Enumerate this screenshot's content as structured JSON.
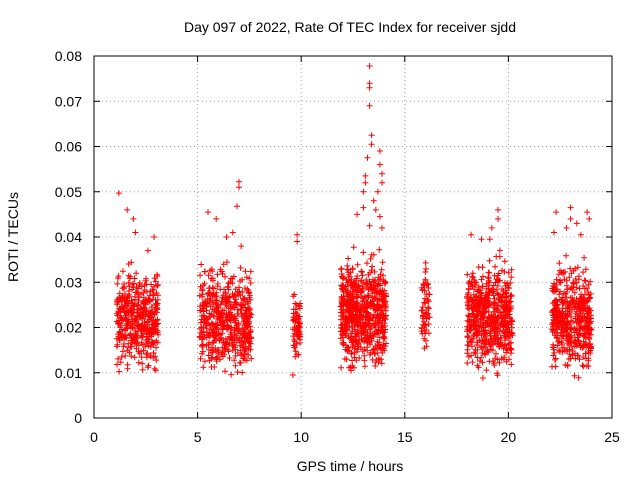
{
  "chart_data": {
    "type": "scatter",
    "title": "Day 097 of 2022, Rate Of TEC Index for receiver sjdd",
    "xlabel": "GPS time / hours",
    "ylabel": "ROTI / TECUs",
    "xlim": [
      0,
      25
    ],
    "ylim": [
      0,
      0.08
    ],
    "xticks": [
      0,
      5,
      10,
      15,
      20,
      25
    ],
    "yticks": [
      0,
      0.01,
      0.02,
      0.03,
      0.04,
      0.05,
      0.06,
      0.07,
      0.08
    ],
    "ytick_labels": [
      "0",
      "0.01",
      "0.02",
      "0.03",
      "0.04",
      "0.05",
      "0.06",
      "0.07",
      "0.08"
    ],
    "grid": true,
    "grid_style": "dotted",
    "marker": "+",
    "colors": {
      "points": "#ff0000",
      "grid": "#a0a0a0",
      "axes": "#000000"
    },
    "series": [
      {
        "clusters": [
          {
            "x_range": [
              1.1,
              3.1
            ],
            "y_range": [
              0.008,
              0.036
            ],
            "n": 430,
            "outliers": [
              [
                1.2,
                0.0497
              ],
              [
                1.6,
                0.046
              ],
              [
                1.9,
                0.044
              ],
              [
                2.0,
                0.041
              ],
              [
                2.9,
                0.04
              ],
              [
                2.6,
                0.037
              ]
            ]
          },
          {
            "x_range": [
              5.1,
              7.6
            ],
            "y_range": [
              0.007,
              0.036
            ],
            "n": 520,
            "outliers": [
              [
                5.5,
                0.0455
              ],
              [
                5.9,
                0.044
              ],
              [
                6.4,
                0.04
              ],
              [
                6.7,
                0.041
              ],
              [
                7.0,
                0.0522
              ],
              [
                7.0,
                0.051
              ],
              [
                6.9,
                0.0468
              ],
              [
                7.1,
                0.038
              ]
            ]
          },
          {
            "x_range": [
              9.6,
              9.95
            ],
            "y_range": [
              0.01,
              0.031
            ],
            "n": 70,
            "outliers": [
              [
                9.8,
                0.0405
              ],
              [
                9.8,
                0.039
              ],
              [
                9.6,
                0.0095
              ]
            ]
          },
          {
            "x_range": [
              11.9,
              14.1
            ],
            "y_range": [
              0.008,
              0.038
            ],
            "n": 650,
            "outliers": [
              [
                13.3,
                0.0778
              ],
              [
                13.3,
                0.074
              ],
              [
                13.3,
                0.073
              ],
              [
                13.3,
                0.069
              ],
              [
                13.4,
                0.0625
              ],
              [
                13.4,
                0.0605
              ],
              [
                13.2,
                0.0575
              ],
              [
                13.8,
                0.059
              ],
              [
                13.8,
                0.056
              ],
              [
                13.9,
                0.054
              ],
              [
                13.9,
                0.052
              ],
              [
                13.1,
                0.0535
              ],
              [
                13.1,
                0.052
              ],
              [
                13.0,
                0.05
              ],
              [
                13.7,
                0.05
              ],
              [
                13.5,
                0.048
              ],
              [
                13.0,
                0.0465
              ],
              [
                13.6,
                0.046
              ],
              [
                13.8,
                0.0445
              ],
              [
                13.3,
                0.0425
              ],
              [
                13.9,
                0.042
              ],
              [
                12.7,
                0.045
              ]
            ]
          },
          {
            "x_range": [
              15.8,
              16.2
            ],
            "y_range": [
              0.012,
              0.037
            ],
            "n": 60,
            "outliers": []
          },
          {
            "x_range": [
              18.0,
              20.2
            ],
            "y_range": [
              0.007,
              0.038
            ],
            "n": 560,
            "outliers": [
              [
                19.5,
                0.046
              ],
              [
                19.5,
                0.044
              ],
              [
                18.2,
                0.0405
              ],
              [
                19.2,
                0.042
              ],
              [
                18.7,
                0.0395
              ],
              [
                19.1,
                0.0395
              ]
            ]
          },
          {
            "x_range": [
              22.1,
              24.0
            ],
            "y_range": [
              0.007,
              0.037
            ],
            "n": 470,
            "outliers": [
              [
                23.0,
                0.0465
              ],
              [
                23.0,
                0.044
              ],
              [
                22.3,
                0.0455
              ],
              [
                23.3,
                0.043
              ],
              [
                23.8,
                0.0455
              ],
              [
                23.9,
                0.044
              ],
              [
                22.2,
                0.041
              ],
              [
                23.5,
                0.0405
              ],
              [
                22.8,
                0.042
              ]
            ]
          }
        ]
      }
    ]
  }
}
